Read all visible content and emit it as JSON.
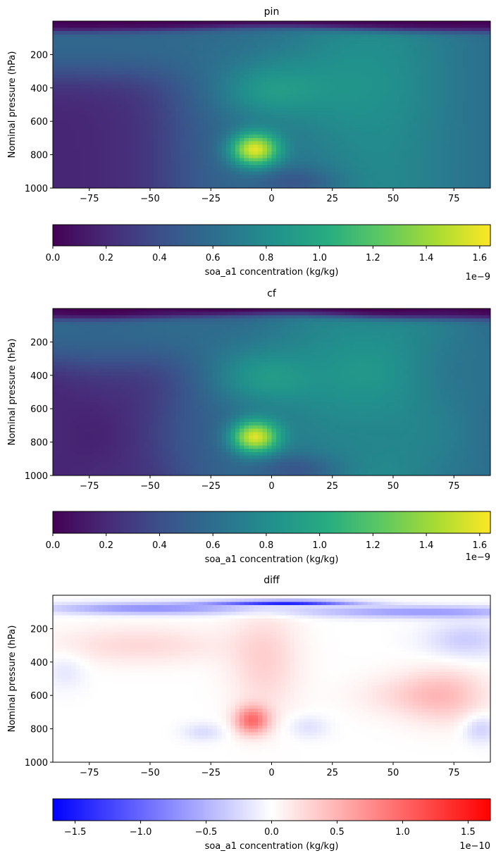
{
  "chart_data": [
    {
      "type": "heatmap",
      "title": "pin",
      "xlabel": "",
      "ylabel": "Nominal pressure (hPa)",
      "xlim": [
        -90,
        90
      ],
      "ylim": [
        1000,
        0
      ],
      "xticks": [
        -75,
        -50,
        -25,
        0,
        25,
        50,
        75
      ],
      "xtick_labels": [
        "−75",
        "−50",
        "−25",
        "0",
        "25",
        "50",
        "75"
      ],
      "yticks": [
        200,
        400,
        600,
        800,
        1000
      ],
      "ytick_labels": [
        "200",
        "400",
        "600",
        "800",
        "1000"
      ],
      "colormap": "viridis",
      "colorbar": {
        "label": "soa_a1 concentration (kg/kg)",
        "range": [
          0,
          1.64
        ],
        "ticks": [
          0.0,
          0.2,
          0.4,
          0.6,
          0.8,
          1.0,
          1.2,
          1.4,
          1.6
        ],
        "tick_labels": [
          "0.0",
          "0.2",
          "0.4",
          "0.6",
          "0.8",
          "1.0",
          "1.2",
          "1.4",
          "1.6"
        ],
        "offset_text": "1e−9"
      }
    },
    {
      "type": "heatmap",
      "title": "cf",
      "xlabel": "",
      "ylabel": "Nominal pressure (hPa)",
      "xlim": [
        -90,
        90
      ],
      "ylim": [
        1000,
        0
      ],
      "xticks": [
        -75,
        -50,
        -25,
        0,
        25,
        50,
        75
      ],
      "xtick_labels": [
        "−75",
        "−50",
        "−25",
        "0",
        "25",
        "50",
        "75"
      ],
      "yticks": [
        200,
        400,
        600,
        800,
        1000
      ],
      "ytick_labels": [
        "200",
        "400",
        "600",
        "800",
        "1000"
      ],
      "colormap": "viridis",
      "colorbar": {
        "label": "soa_a1 concentration (kg/kg)",
        "range": [
          0,
          1.64
        ],
        "ticks": [
          0.0,
          0.2,
          0.4,
          0.6,
          0.8,
          1.0,
          1.2,
          1.4,
          1.6
        ],
        "tick_labels": [
          "0.0",
          "0.2",
          "0.4",
          "0.6",
          "0.8",
          "1.0",
          "1.2",
          "1.4",
          "1.6"
        ],
        "offset_text": "1e−9"
      }
    },
    {
      "type": "heatmap",
      "title": "diff",
      "xlabel": "",
      "ylabel": "Nominal pressure (hPa)",
      "xlim": [
        -90,
        90
      ],
      "ylim": [
        1000,
        0
      ],
      "xticks": [
        -75,
        -50,
        -25,
        0,
        25,
        50,
        75
      ],
      "xtick_labels": [
        "−75",
        "−50",
        "−25",
        "0",
        "25",
        "50",
        "75"
      ],
      "yticks": [
        200,
        400,
        600,
        800,
        1000
      ],
      "ytick_labels": [
        "200",
        "400",
        "600",
        "800",
        "1000"
      ],
      "colormap": "bwr",
      "colorbar": {
        "label": "soa_a1 concentration (kg/kg)",
        "range": [
          -1.67,
          1.67
        ],
        "ticks": [
          -1.5,
          -1.0,
          -0.5,
          0.0,
          0.5,
          1.0,
          1.5
        ],
        "tick_labels": [
          "−1.5",
          "−1.0",
          "−0.5",
          "0.0",
          "0.5",
          "1.0",
          "1.5"
        ],
        "offset_text": "1e−10"
      }
    }
  ]
}
